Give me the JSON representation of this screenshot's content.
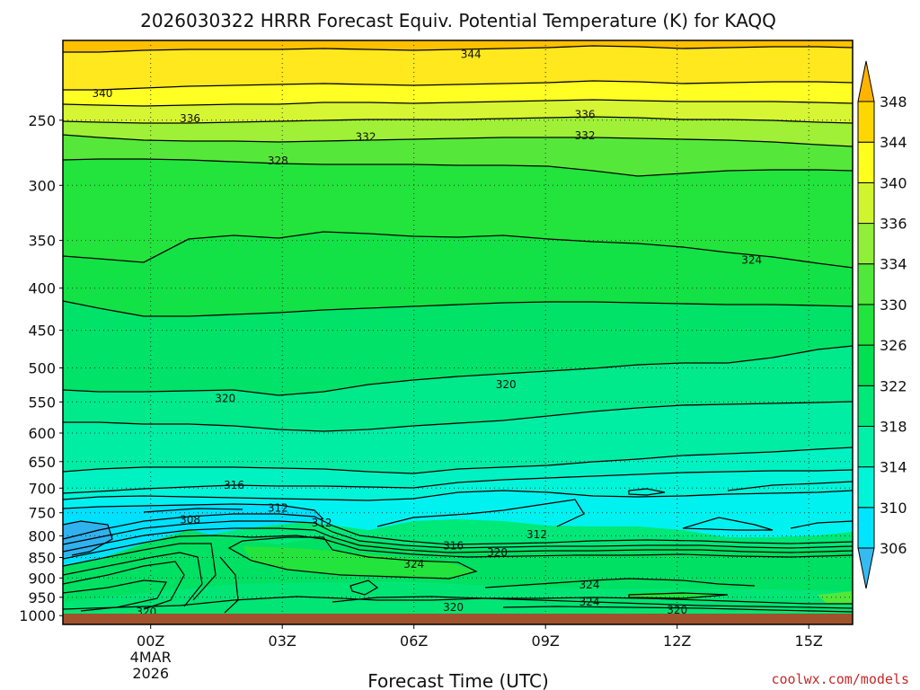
{
  "chart_data": {
    "type": "contour",
    "title": "2026030322 HRRR Forecast Equiv. Potential Temperature (K) for KAQQ",
    "xlabel": "Forecast Time (UTC)",
    "ylabel": "",
    "x_ticks": [
      {
        "label": "00Z",
        "hour": 0,
        "sub": [
          "4MAR",
          "2026"
        ]
      },
      {
        "label": "03Z",
        "hour": 3,
        "sub": []
      },
      {
        "label": "06Z",
        "hour": 6,
        "sub": []
      },
      {
        "label": "09Z",
        "hour": 9,
        "sub": []
      },
      {
        "label": "12Z",
        "hour": 12,
        "sub": []
      },
      {
        "label": "15Z",
        "hour": 15,
        "sub": []
      }
    ],
    "x_range_hours": [
      -2,
      16
    ],
    "y_ticks": [
      250,
      300,
      350,
      400,
      450,
      500,
      550,
      600,
      650,
      700,
      750,
      800,
      850,
      900,
      950,
      1000
    ],
    "y_range_hpa": [
      200,
      1025
    ],
    "y_scale": "log-pressure",
    "colorbar": {
      "labels": [
        306,
        310,
        314,
        318,
        322,
        326,
        330,
        334,
        336,
        340,
        344,
        348
      ],
      "colors": [
        "#35bbf0",
        "#00e5ff",
        "#00f5d8",
        "#00f0a8",
        "#00e878",
        "#00e050",
        "#22e43c",
        "#50e83a",
        "#90ef38",
        "#d0f530",
        "#ffff1e",
        "#ffd700",
        "#ffb400"
      ]
    },
    "contour_labels": [
      {
        "text": "344",
        "hour": 7.3,
        "p": 208
      },
      {
        "text": "340",
        "hour": -1.1,
        "p": 232
      },
      {
        "text": "336",
        "hour": 0.9,
        "p": 249
      },
      {
        "text": "336",
        "hour": 9.9,
        "p": 246
      },
      {
        "text": "332",
        "hour": 4.9,
        "p": 262
      },
      {
        "text": "332",
        "hour": 9.9,
        "p": 261
      },
      {
        "text": "328",
        "hour": 2.9,
        "p": 280
      },
      {
        "text": "324",
        "hour": 13.7,
        "p": 370
      },
      {
        "text": "320",
        "hour": 1.7,
        "p": 545
      },
      {
        "text": "320",
        "hour": 8.1,
        "p": 524
      },
      {
        "text": "316",
        "hour": 1.9,
        "p": 694
      },
      {
        "text": "312",
        "hour": 2.9,
        "p": 740
      },
      {
        "text": "308",
        "hour": 0.9,
        "p": 765
      },
      {
        "text": "312",
        "hour": 3.9,
        "p": 772
      },
      {
        "text": "312",
        "hour": 8.8,
        "p": 797
      },
      {
        "text": "316",
        "hour": 6.9,
        "p": 823
      },
      {
        "text": "320",
        "hour": 7.9,
        "p": 838
      },
      {
        "text": "324",
        "hour": 6.0,
        "p": 866
      },
      {
        "text": "324",
        "hour": 10.0,
        "p": 918
      },
      {
        "text": "324",
        "hour": 10.0,
        "p": 962
      },
      {
        "text": "320",
        "hour": 6.9,
        "p": 977
      },
      {
        "text": "320",
        "hour": 12.0,
        "p": 985
      },
      {
        "text": "320",
        "hour": -0.1,
        "p": 990
      }
    ],
    "ground_color": "#a0522d"
  },
  "watermark": "coolwx.com/models"
}
